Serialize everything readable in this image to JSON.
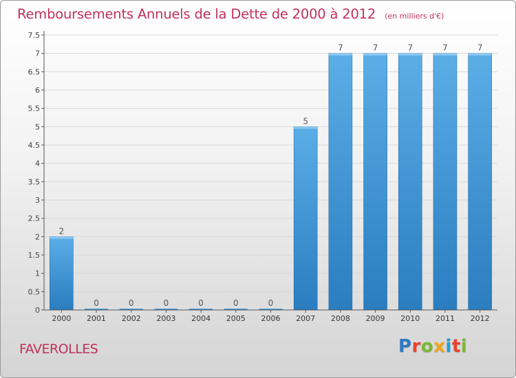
{
  "title": "Remboursements Annuels de la Dette de 2000 à 2012",
  "unit_note": "(en milliers d'€)",
  "commune": "FAVEROLLES",
  "logo": {
    "letters": [
      "P",
      "r",
      "o",
      "x",
      "i",
      "t",
      "i"
    ],
    "colors": [
      "#2f79c2",
      "#e8422f",
      "#7cb82f",
      "#f2a51a",
      "#1ba0d8",
      "#e8422f",
      "#7cb82f"
    ]
  },
  "colors": {
    "bar_light": "#5baee6",
    "bar_dark": "#2a7dbf",
    "title": "#c0305a",
    "axis": "#555555",
    "grid": "#d8d8d8"
  },
  "chart_data": {
    "type": "bar",
    "title": "Remboursements Annuels de la Dette de 2000 à 2012",
    "subtitle": "(en milliers d'€)",
    "categories": [
      "2000",
      "2001",
      "2002",
      "2003",
      "2004",
      "2005",
      "2006",
      "2007",
      "2008",
      "2009",
      "2010",
      "2011",
      "2012"
    ],
    "values": [
      2,
      0,
      0,
      0,
      0,
      0,
      0,
      5,
      7,
      7,
      7,
      7,
      7
    ],
    "data_labels": [
      "2",
      "0",
      "0",
      "0",
      "0",
      "0",
      "0",
      "5",
      "7",
      "7",
      "7",
      "7",
      "7"
    ],
    "ylim": [
      0,
      7.5
    ],
    "yticks": [
      0,
      0.5,
      1,
      1.5,
      2,
      2.5,
      3,
      3.5,
      4,
      4.5,
      5,
      5.5,
      6,
      6.5,
      7,
      7.5
    ],
    "ytick_labels": [
      "0",
      "0.5",
      "1",
      "1.5",
      "2",
      "2.5",
      "3",
      "3.5",
      "4",
      "4.5",
      "5",
      "5.5",
      "6",
      "6.5",
      "7",
      "7.5"
    ],
    "xlabel": "",
    "ylabel": "",
    "grid": true
  }
}
